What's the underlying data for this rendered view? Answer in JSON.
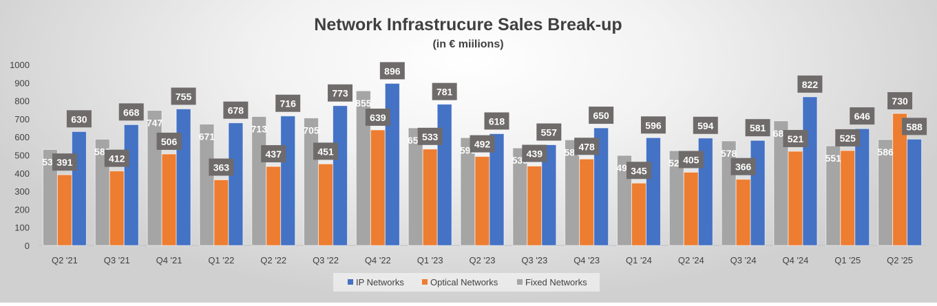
{
  "chart_data": {
    "type": "bar",
    "title": "Network Infrastrucure Sales Break-up",
    "subtitle": "(in € miilions)",
    "xlabel": "",
    "ylabel": "",
    "ylim": [
      0,
      1000
    ],
    "yticks": [
      0,
      100,
      200,
      300,
      400,
      500,
      600,
      700,
      800,
      900,
      1000
    ],
    "grid": false,
    "legend_position": "bottom",
    "categories": [
      "Q2 '21",
      "Q3 '21",
      "Q4 '21",
      "Q1 '22",
      "Q2 '22",
      "Q3 '22",
      "Q4 '22",
      "Q1 '23",
      "Q2 '23",
      "Q3 '23",
      "Q4 '23",
      "Q1 '24",
      "Q2 '24",
      "Q3 '24",
      "Q4 '24",
      "Q1 '25",
      "Q2 '25"
    ],
    "series": [
      {
        "name": "Fixed Networks",
        "color": "#a5a5a5",
        "values": [
          531,
          588,
          747,
          671,
          713,
          705,
          855,
          650,
          596,
          539,
          584,
          498,
          524,
          578,
          689,
          551,
          586
        ]
      },
      {
        "name": "Optical Networks",
        "color": "#ed7d31",
        "values": [
          391,
          412,
          506,
          363,
          437,
          451,
          639,
          533,
          492,
          439,
          478,
          345,
          405,
          366,
          521,
          525,
          730
        ]
      },
      {
        "name": "IP Networks",
        "color": "#4472c4",
        "values": [
          630,
          668,
          755,
          678,
          716,
          773,
          896,
          781,
          618,
          557,
          650,
          596,
          594,
          581,
          822,
          646,
          588
        ]
      }
    ],
    "legend_order": [
      "IP Networks",
      "Optical Networks",
      "Fixed Networks"
    ],
    "label_box_color": "#6f6b6b"
  }
}
